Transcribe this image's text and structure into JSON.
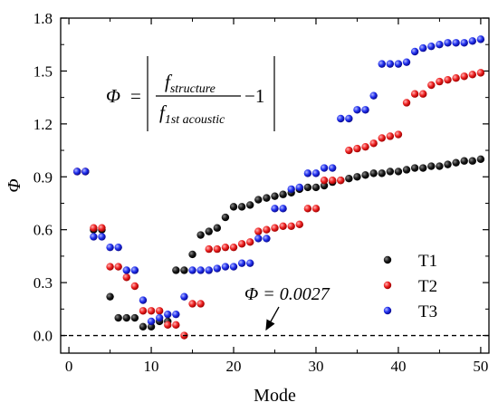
{
  "chart_data": {
    "type": "scatter",
    "xlabel": "Mode",
    "ylabel": "Φ",
    "xlim": [
      -1,
      51
    ],
    "ylim": [
      -0.1,
      1.8
    ],
    "xticks": [
      0,
      10,
      20,
      30,
      40,
      50
    ],
    "yticks": [
      0.0,
      0.3,
      0.6,
      0.9,
      1.2,
      1.5,
      1.8
    ],
    "ytick_labels": [
      "0.0",
      "0.3",
      "0.6",
      "0.9",
      "1.2",
      "1.5",
      "1.8"
    ],
    "legend_position": "lower-right",
    "grid": false,
    "reference_line": {
      "y": 0.0,
      "style": "dashed",
      "color": "#000000"
    },
    "annotation": {
      "text": "Φ = 0.0027",
      "x": 24,
      "y": 0.0027,
      "arrow": true
    },
    "formula": {
      "lhs": "Φ",
      "numerator_base": "f",
      "numerator_sub": "structure",
      "denominator_base": "f",
      "denominator_sub": "1st acoustic",
      "minus_one": "−1"
    },
    "series": [
      {
        "name": "T1",
        "color": "#000000",
        "x": [
          1,
          2,
          3,
          4,
          5,
          6,
          7,
          8,
          9,
          10,
          11,
          12,
          13,
          14,
          15,
          16,
          17,
          18,
          19,
          20,
          21,
          22,
          23,
          24,
          25,
          26,
          27,
          28,
          29,
          30,
          31,
          32,
          33,
          34,
          35,
          36,
          37,
          38,
          39,
          40,
          41,
          42,
          43,
          44,
          45,
          46,
          47,
          48,
          49,
          50
        ],
        "y": [
          0.93,
          0.93,
          0.6,
          0.6,
          0.22,
          0.1,
          0.1,
          0.1,
          0.05,
          0.05,
          0.08,
          0.08,
          0.37,
          0.37,
          0.46,
          0.57,
          0.59,
          0.61,
          0.67,
          0.73,
          0.73,
          0.74,
          0.77,
          0.78,
          0.79,
          0.8,
          0.81,
          0.83,
          0.84,
          0.84,
          0.85,
          0.87,
          0.88,
          0.89,
          0.9,
          0.91,
          0.92,
          0.92,
          0.93,
          0.93,
          0.94,
          0.95,
          0.95,
          0.96,
          0.96,
          0.97,
          0.98,
          0.99,
          0.99,
          1.0
        ]
      },
      {
        "name": "T2",
        "color": "#e61e1e",
        "x": [
          1,
          2,
          3,
          4,
          5,
          6,
          7,
          8,
          9,
          10,
          11,
          12,
          13,
          14,
          15,
          16,
          17,
          18,
          19,
          20,
          21,
          22,
          23,
          24,
          25,
          26,
          27,
          28,
          29,
          30,
          31,
          32,
          33,
          34,
          35,
          36,
          37,
          38,
          39,
          40,
          41,
          42,
          43,
          44,
          45,
          46,
          47,
          48,
          49,
          50
        ],
        "y": [
          0.93,
          0.93,
          0.61,
          0.61,
          0.39,
          0.39,
          0.33,
          0.28,
          0.14,
          0.14,
          0.14,
          0.06,
          0.06,
          0.0,
          0.18,
          0.18,
          0.49,
          0.49,
          0.5,
          0.5,
          0.52,
          0.53,
          0.59,
          0.6,
          0.61,
          0.62,
          0.62,
          0.63,
          0.72,
          0.72,
          0.88,
          0.88,
          0.88,
          1.05,
          1.06,
          1.07,
          1.09,
          1.12,
          1.13,
          1.14,
          1.32,
          1.37,
          1.37,
          1.42,
          1.44,
          1.45,
          1.46,
          1.47,
          1.48,
          1.49
        ]
      },
      {
        "name": "T3",
        "color": "#1428e6",
        "x": [
          1,
          2,
          3,
          4,
          5,
          6,
          7,
          8,
          9,
          10,
          11,
          12,
          13,
          14,
          15,
          16,
          17,
          18,
          19,
          20,
          21,
          22,
          23,
          24,
          25,
          26,
          27,
          28,
          29,
          30,
          31,
          32,
          33,
          34,
          35,
          36,
          37,
          38,
          39,
          40,
          41,
          42,
          43,
          44,
          45,
          46,
          47,
          48,
          49,
          50
        ],
        "y": [
          0.93,
          0.93,
          0.56,
          0.56,
          0.5,
          0.5,
          0.37,
          0.37,
          0.2,
          0.08,
          0.1,
          0.12,
          0.12,
          0.22,
          0.37,
          0.37,
          0.37,
          0.38,
          0.39,
          0.39,
          0.41,
          0.41,
          0.55,
          0.55,
          0.72,
          0.72,
          0.83,
          0.84,
          0.92,
          0.92,
          0.95,
          0.95,
          1.23,
          1.23,
          1.28,
          1.28,
          1.36,
          1.54,
          1.54,
          1.54,
          1.55,
          1.61,
          1.63,
          1.64,
          1.65,
          1.66,
          1.66,
          1.66,
          1.67,
          1.68
        ]
      }
    ]
  }
}
